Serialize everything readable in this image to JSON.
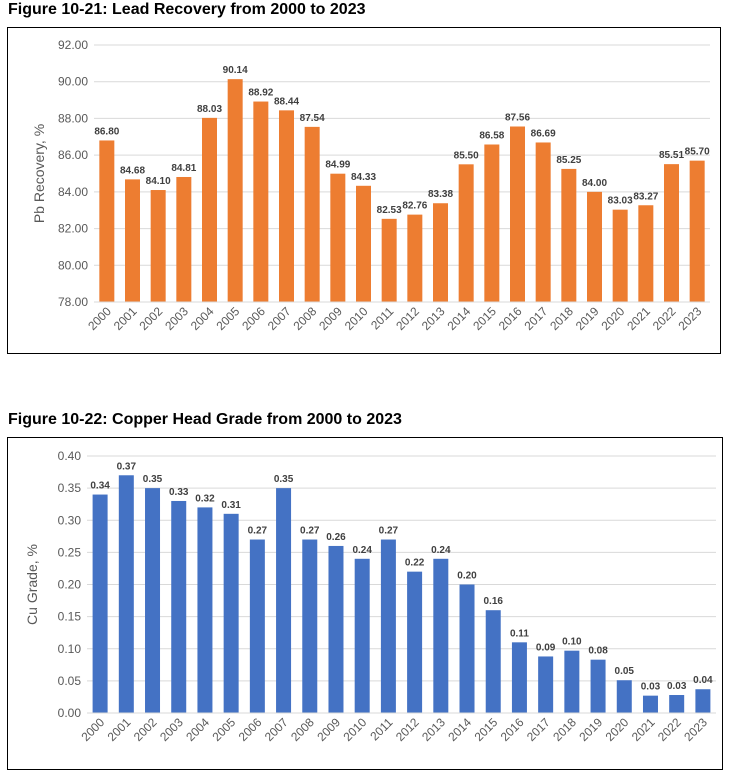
{
  "chart_data": [
    {
      "type": "bar",
      "title": "Figure 10-21: Lead Recovery from 2000 to 2023",
      "xlabel": "",
      "ylabel": "Pb Recovery, %",
      "ylim": [
        78,
        92
      ],
      "ytick_step": 2,
      "ytick_decimals": 2,
      "yticks": [
        "78.00",
        "80.00",
        "82.00",
        "84.00",
        "86.00",
        "88.00",
        "90.00",
        "92.00"
      ],
      "grid": true,
      "color": "#ED7D31",
      "categories": [
        "2000",
        "2001",
        "2002",
        "2003",
        "2004",
        "2005",
        "2006",
        "2007",
        "2008",
        "2009",
        "2010",
        "2011",
        "2012",
        "2013",
        "2014",
        "2015",
        "2016",
        "2017",
        "2018",
        "2019",
        "2020",
        "2021",
        "2022",
        "2023"
      ],
      "values": [
        86.8,
        84.68,
        84.1,
        84.81,
        88.03,
        90.14,
        88.92,
        88.44,
        87.54,
        84.99,
        84.33,
        82.53,
        82.76,
        83.38,
        85.5,
        86.58,
        87.56,
        86.69,
        85.25,
        84.0,
        83.03,
        83.27,
        85.51,
        85.7
      ],
      "labels": [
        "86.80",
        "84.68",
        "84.10",
        "84.81",
        "88.03",
        "90.14",
        "88.92",
        "88.44",
        "87.54",
        "84.99",
        "84.33",
        "82.53",
        "82.76",
        "83.38",
        "85.50",
        "86.58",
        "87.56",
        "86.69",
        "85.25",
        "84.00",
        "83.03",
        "83.27",
        "85.51",
        "85.70"
      ]
    },
    {
      "type": "bar",
      "title": "Figure 10-22: Copper Head Grade from 2000 to 2023",
      "xlabel": "",
      "ylabel": "Cu Grade, %",
      "ylim": [
        0,
        0.4
      ],
      "ytick_step": 0.05,
      "ytick_decimals": 2,
      "yticks": [
        "0.00",
        "0.05",
        "0.10",
        "0.15",
        "0.20",
        "0.25",
        "0.30",
        "0.35",
        "0.40"
      ],
      "grid": true,
      "color": "#4472C4",
      "categories": [
        "2000",
        "2001",
        "2002",
        "2003",
        "2004",
        "2005",
        "2006",
        "2007",
        "2008",
        "2009",
        "2010",
        "2011",
        "2012",
        "2013",
        "2014",
        "2015",
        "2016",
        "2017",
        "2018",
        "2019",
        "2020",
        "2021",
        "2022",
        "2023"
      ],
      "values": [
        0.34,
        0.37,
        0.35,
        0.33,
        0.32,
        0.31,
        0.27,
        0.35,
        0.27,
        0.26,
        0.24,
        0.27,
        0.22,
        0.24,
        0.2,
        0.16,
        0.11,
        0.088,
        0.097,
        0.083,
        0.051,
        0.027,
        0.028,
        0.037
      ],
      "labels": [
        "0.34",
        "0.37",
        "0.35",
        "0.33",
        "0.32",
        "0.31",
        "0.27",
        "0.35",
        "0.27",
        "0.26",
        "0.24",
        "0.27",
        "0.22",
        "0.24",
        "0.20",
        "0.16",
        "0.11",
        "0.09",
        "0.10",
        "0.08",
        "0.05",
        "0.03",
        "0.03",
        "0.04"
      ]
    }
  ]
}
